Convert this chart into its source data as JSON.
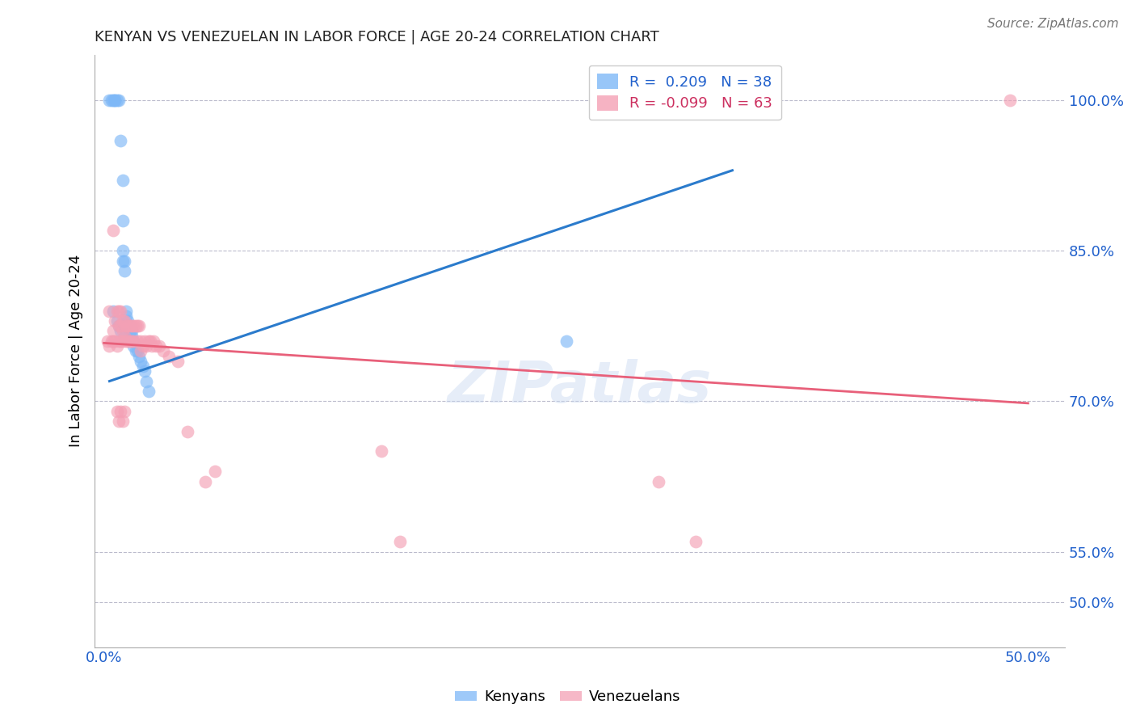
{
  "title": "KENYAN VS VENEZUELAN IN LABOR FORCE | AGE 20-24 CORRELATION CHART",
  "source": "Source: ZipAtlas.com",
  "ylabel": "In Labor Force | Age 20-24",
  "xlim": [
    -0.005,
    0.52
  ],
  "ylim": [
    0.455,
    1.045
  ],
  "x_ticks": [
    0.0,
    0.5
  ],
  "x_tick_labels": [
    "0.0%",
    "50.0%"
  ],
  "y_ticks": [
    0.5,
    0.55,
    0.7,
    0.85,
    1.0
  ],
  "y_tick_labels": [
    "50.0%",
    "55.0%",
    "70.0%",
    "85.0%",
    "100.0%"
  ],
  "legend_blue_label": "R =  0.209   N = 38",
  "legend_pink_label": "R = -0.099   N = 63",
  "blue_dot_color": "#7EB8F7",
  "pink_dot_color": "#F4A0B5",
  "blue_line_color": "#2B7BCC",
  "pink_line_color": "#E8607A",
  "watermark": "ZIPatlas",
  "kenyan_x": [
    0.003,
    0.004,
    0.005,
    0.006,
    0.006,
    0.007,
    0.008,
    0.009,
    0.01,
    0.01,
    0.01,
    0.01,
    0.011,
    0.011,
    0.012,
    0.012,
    0.013,
    0.013,
    0.014,
    0.014,
    0.015,
    0.015,
    0.016,
    0.016,
    0.017,
    0.018,
    0.019,
    0.02,
    0.021,
    0.022,
    0.023,
    0.024,
    0.005,
    0.007,
    0.008,
    0.009,
    0.011,
    0.25
  ],
  "kenyan_y": [
    1.0,
    1.0,
    1.0,
    1.0,
    1.0,
    1.0,
    1.0,
    0.96,
    0.92,
    0.88,
    0.85,
    0.84,
    0.84,
    0.83,
    0.79,
    0.785,
    0.78,
    0.775,
    0.775,
    0.77,
    0.77,
    0.765,
    0.76,
    0.755,
    0.75,
    0.75,
    0.745,
    0.74,
    0.735,
    0.73,
    0.72,
    0.71,
    0.79,
    0.78,
    0.775,
    0.77,
    0.765,
    0.76
  ],
  "venezuelan_x": [
    0.002,
    0.003,
    0.003,
    0.004,
    0.005,
    0.005,
    0.006,
    0.006,
    0.007,
    0.007,
    0.008,
    0.008,
    0.008,
    0.009,
    0.009,
    0.009,
    0.01,
    0.01,
    0.01,
    0.011,
    0.011,
    0.012,
    0.012,
    0.013,
    0.013,
    0.014,
    0.014,
    0.015,
    0.015,
    0.016,
    0.016,
    0.017,
    0.018,
    0.018,
    0.019,
    0.02,
    0.02,
    0.021,
    0.022,
    0.023,
    0.024,
    0.025,
    0.026,
    0.027,
    0.028,
    0.03,
    0.032,
    0.035,
    0.04,
    0.045,
    0.055,
    0.06,
    0.15,
    0.16,
    0.3,
    0.32,
    0.005,
    0.007,
    0.008,
    0.009,
    0.01,
    0.011,
    0.49
  ],
  "venezuelan_y": [
    0.76,
    0.79,
    0.755,
    0.76,
    0.87,
    0.76,
    0.78,
    0.76,
    0.79,
    0.755,
    0.79,
    0.775,
    0.76,
    0.79,
    0.775,
    0.76,
    0.78,
    0.77,
    0.76,
    0.78,
    0.765,
    0.775,
    0.76,
    0.775,
    0.76,
    0.775,
    0.76,
    0.775,
    0.76,
    0.775,
    0.76,
    0.775,
    0.775,
    0.76,
    0.775,
    0.76,
    0.75,
    0.755,
    0.76,
    0.755,
    0.76,
    0.76,
    0.755,
    0.76,
    0.755,
    0.755,
    0.75,
    0.745,
    0.74,
    0.67,
    0.62,
    0.63,
    0.65,
    0.56,
    0.62,
    0.56,
    0.77,
    0.69,
    0.68,
    0.69,
    0.68,
    0.69,
    1.0
  ],
  "blue_line_x": [
    0.003,
    0.34
  ],
  "blue_line_y": [
    0.72,
    0.93
  ],
  "pink_line_x": [
    0.0,
    0.5
  ],
  "pink_line_y": [
    0.758,
    0.698
  ]
}
